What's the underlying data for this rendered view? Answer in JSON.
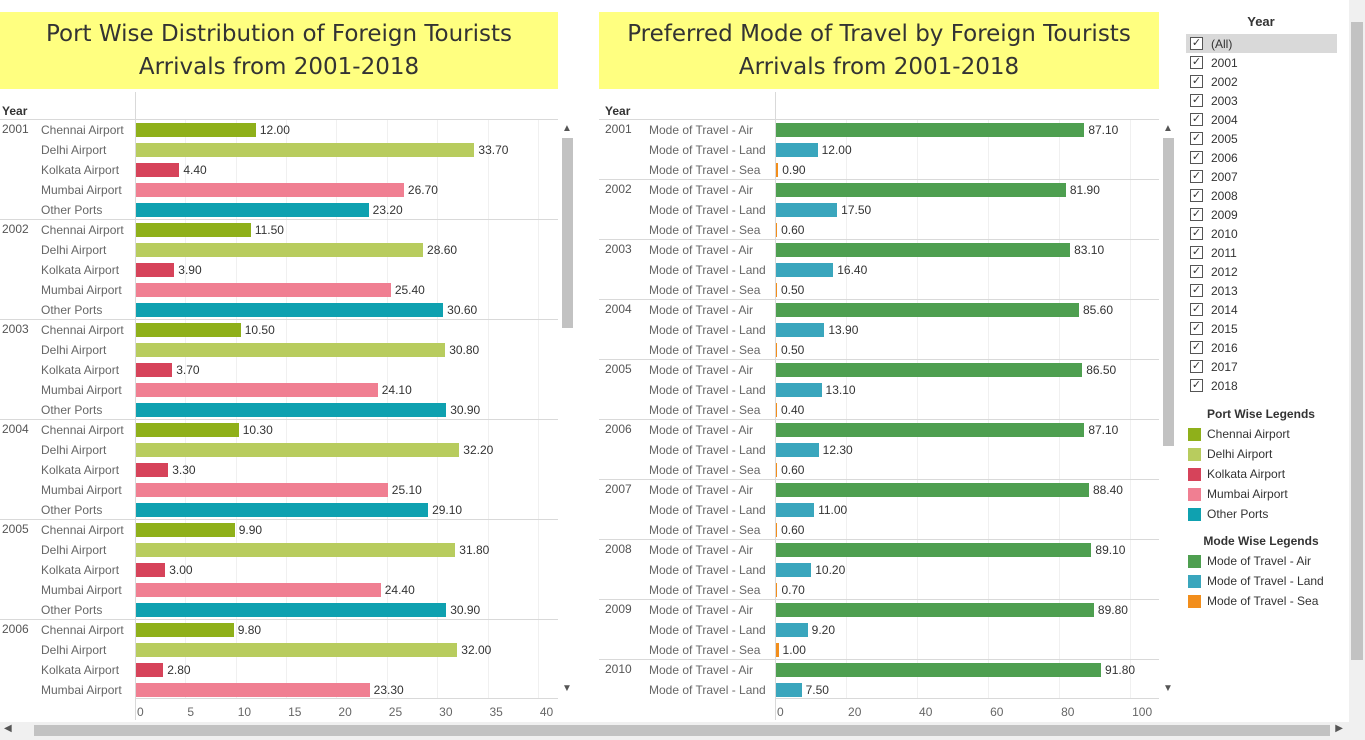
{
  "left_title": {
    "line1": "Port Wise Distribution of Foreign Tourists",
    "line2": "Arrivals  from 2001-2018"
  },
  "right_title": {
    "line1": "Preferred Mode of Travel by Foreign Tourists",
    "line2": "Arrivals  from 2001-2018"
  },
  "year_header": "Year",
  "filter": {
    "title": "Year",
    "items": [
      "(All)",
      "2001",
      "2002",
      "2003",
      "2004",
      "2005",
      "2006",
      "2007",
      "2008",
      "2009",
      "2010",
      "2011",
      "2012",
      "2013",
      "2014",
      "2015",
      "2016",
      "2017",
      "2018"
    ],
    "check_glyph": "✓"
  },
  "port_legend": {
    "title": "Port Wise Legends",
    "items": [
      {
        "label": "Chennai Airport",
        "color": "#8fb01a"
      },
      {
        "label": "Delhi Airport",
        "color": "#b8cc5e"
      },
      {
        "label": "Kolkata Airport",
        "color": "#d6435a"
      },
      {
        "label": "Mumbai Airport",
        "color": "#f07f92"
      },
      {
        "label": "Other Ports",
        "color": "#0fa1b0"
      }
    ]
  },
  "mode_legend": {
    "title": "Mode Wise Legends",
    "items": [
      {
        "label": "Mode of Travel - Air",
        "color": "#4e9f50"
      },
      {
        "label": "Mode of Travel - Land",
        "color": "#3aa6bd"
      },
      {
        "label": "Mode of Travel - Sea",
        "color": "#f28e1c"
      }
    ]
  },
  "chart_data": [
    {
      "type": "bar",
      "title": "Port Wise Distribution of Foreign Tourists Arrivals  from 2001-2018",
      "orientation": "horizontal",
      "xlim": [
        0,
        42
      ],
      "xticks": [
        "0",
        "5",
        "10",
        "15",
        "20",
        "25",
        "30",
        "35",
        "40"
      ],
      "tick_values": [
        0,
        5,
        10,
        15,
        20,
        25,
        30,
        35,
        40
      ],
      "categories": [
        "Chennai Airport",
        "Delhi Airport",
        "Kolkata Airport",
        "Mumbai Airport",
        "Other Ports"
      ],
      "groups": [
        {
          "year": "2001",
          "values": [
            12.0,
            33.7,
            4.4,
            26.7,
            23.2
          ],
          "labels": [
            "12.00",
            "33.70",
            "4.40",
            "26.70",
            "23.20"
          ]
        },
        {
          "year": "2002",
          "values": [
            11.5,
            28.6,
            3.9,
            25.4,
            30.6
          ],
          "labels": [
            "11.50",
            "28.60",
            "3.90",
            "25.40",
            "30.60"
          ]
        },
        {
          "year": "2003",
          "values": [
            10.5,
            30.8,
            3.7,
            24.1,
            30.9
          ],
          "labels": [
            "10.50",
            "30.80",
            "3.70",
            "24.10",
            "30.90"
          ]
        },
        {
          "year": "2004",
          "values": [
            10.3,
            32.2,
            3.3,
            25.1,
            29.1
          ],
          "labels": [
            "10.30",
            "32.20",
            "3.30",
            "25.10",
            "29.10"
          ]
        },
        {
          "year": "2005",
          "values": [
            9.9,
            31.8,
            3.0,
            24.4,
            30.9
          ],
          "labels": [
            "9.90",
            "31.80",
            "3.00",
            "24.40",
            "30.90"
          ]
        },
        {
          "year": "2006",
          "values": [
            9.8,
            32.0,
            2.8,
            23.3
          ],
          "labels": [
            "9.80",
            "32.00",
            "2.80",
            "23.30"
          ]
        }
      ]
    },
    {
      "type": "bar",
      "title": "Preferred Mode of Travel by Foreign Tourists Arrivals  from 2001-2018",
      "orientation": "horizontal",
      "xlim": [
        0,
        107
      ],
      "xticks": [
        "0",
        "20",
        "40",
        "60",
        "80",
        "100"
      ],
      "tick_values": [
        0,
        20,
        40,
        60,
        80,
        100
      ],
      "categories": [
        "Mode of Travel - Air",
        "Mode of Travel - Land",
        "Mode of Travel - Sea"
      ],
      "groups": [
        {
          "year": "2001",
          "values": [
            87.1,
            12.0,
            0.9
          ],
          "labels": [
            "87.10",
            "12.00",
            "0.90"
          ]
        },
        {
          "year": "2002",
          "values": [
            81.9,
            17.5,
            0.6
          ],
          "labels": [
            "81.90",
            "17.50",
            "0.60"
          ]
        },
        {
          "year": "2003",
          "values": [
            83.1,
            16.4,
            0.5
          ],
          "labels": [
            "83.10",
            "16.40",
            "0.50"
          ]
        },
        {
          "year": "2004",
          "values": [
            85.6,
            13.9,
            0.5
          ],
          "labels": [
            "85.60",
            "13.90",
            "0.50"
          ]
        },
        {
          "year": "2005",
          "values": [
            86.5,
            13.1,
            0.4
          ],
          "labels": [
            "86.50",
            "13.10",
            "0.40"
          ]
        },
        {
          "year": "2006",
          "values": [
            87.1,
            12.3,
            0.6
          ],
          "labels": [
            "87.10",
            "12.30",
            "0.60"
          ]
        },
        {
          "year": "2007",
          "values": [
            88.4,
            11.0,
            0.6
          ],
          "labels": [
            "88.40",
            "11.00",
            "0.60"
          ]
        },
        {
          "year": "2008",
          "values": [
            89.1,
            10.2,
            0.7
          ],
          "labels": [
            "89.10",
            "10.20",
            "0.70"
          ]
        },
        {
          "year": "2009",
          "values": [
            89.8,
            9.2,
            1.0
          ],
          "labels": [
            "89.80",
            "9.20",
            "1.00"
          ]
        },
        {
          "year": "2010",
          "values": [
            91.8,
            7.5
          ],
          "labels": [
            "91.80",
            "7.50"
          ]
        }
      ]
    }
  ],
  "scroll": {
    "up_glyph": "▲",
    "down_glyph": "▼",
    "left_glyph": "◀",
    "right_glyph": "▶"
  }
}
